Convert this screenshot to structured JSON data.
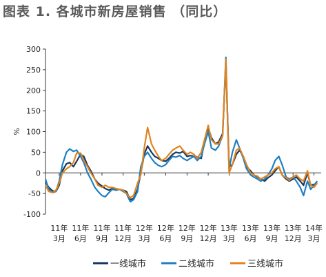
{
  "title": "图表 1. 各城市新房屋销售 （同比）",
  "chart_data": {
    "type": "line",
    "ylabel": "%",
    "ylim": [
      -100,
      300
    ],
    "yticks": [
      -100,
      -50,
      0,
      50,
      100,
      150,
      200,
      250,
      300
    ],
    "x_range": [
      "2011-01",
      "2014-04"
    ],
    "xticks": [
      {
        "date": "2011-03",
        "line1": "11年",
        "line2": "3月"
      },
      {
        "date": "2011-06",
        "line1": "11年",
        "line2": "6月"
      },
      {
        "date": "2011-09",
        "line1": "11年",
        "line2": "9月"
      },
      {
        "date": "2011-12",
        "line1": "11年",
        "line2": "12月"
      },
      {
        "date": "2012-03",
        "line1": "12年",
        "line2": "3月"
      },
      {
        "date": "2012-06",
        "line1": "12年",
        "line2": "6月"
      },
      {
        "date": "2012-09",
        "line1": "12年",
        "line2": "9月"
      },
      {
        "date": "2012-12",
        "line1": "12年",
        "line2": "12月"
      },
      {
        "date": "2013-03",
        "line1": "13年",
        "line2": "3月"
      },
      {
        "date": "2013-06",
        "line1": "13年",
        "line2": "6月"
      },
      {
        "date": "2013-09",
        "line1": "13年",
        "line2": "9月"
      },
      {
        "date": "2013-12",
        "line1": "13年",
        "line2": "12月"
      },
      {
        "date": "2014-03",
        "line1": "14年",
        "line2": "3月"
      }
    ],
    "grid": false,
    "legend_position": "bottom",
    "series": [
      {
        "name": "一线城市",
        "color": "#17375e",
        "points": [
          [
            "2011-01-01",
            -22
          ],
          [
            "2011-01-15",
            -35
          ],
          [
            "2011-02-01",
            -44
          ],
          [
            "2011-02-15",
            -45
          ],
          [
            "2011-03-01",
            -30
          ],
          [
            "2011-03-15",
            5
          ],
          [
            "2011-04-01",
            22
          ],
          [
            "2011-04-15",
            25
          ],
          [
            "2011-05-01",
            15
          ],
          [
            "2011-05-15",
            28
          ],
          [
            "2011-06-01",
            45
          ],
          [
            "2011-06-15",
            40
          ],
          [
            "2011-07-01",
            18
          ],
          [
            "2011-07-15",
            5
          ],
          [
            "2011-08-01",
            -15
          ],
          [
            "2011-08-15",
            -25
          ],
          [
            "2011-09-01",
            -32
          ],
          [
            "2011-09-15",
            -38
          ],
          [
            "2011-10-01",
            -42
          ],
          [
            "2011-10-15",
            -38
          ],
          [
            "2011-11-01",
            -40
          ],
          [
            "2011-11-15",
            -40
          ],
          [
            "2011-12-01",
            -42
          ],
          [
            "2011-12-15",
            -45
          ],
          [
            "2012-01-01",
            -65
          ],
          [
            "2012-01-15",
            -62
          ],
          [
            "2012-02-01",
            -40
          ],
          [
            "2012-02-15",
            0
          ],
          [
            "2012-03-01",
            45
          ],
          [
            "2012-03-15",
            65
          ],
          [
            "2012-04-01",
            50
          ],
          [
            "2012-04-15",
            40
          ],
          [
            "2012-05-01",
            35
          ],
          [
            "2012-05-15",
            30
          ],
          [
            "2012-06-01",
            28
          ],
          [
            "2012-06-15",
            35
          ],
          [
            "2012-07-01",
            45
          ],
          [
            "2012-07-15",
            50
          ],
          [
            "2012-08-01",
            48
          ],
          [
            "2012-08-15",
            52
          ],
          [
            "2012-09-01",
            40
          ],
          [
            "2012-09-15",
            42
          ],
          [
            "2012-10-01",
            40
          ],
          [
            "2012-10-15",
            38
          ],
          [
            "2012-11-01",
            35
          ],
          [
            "2012-11-15",
            75
          ],
          [
            "2012-12-01",
            110
          ],
          [
            "2012-12-15",
            85
          ],
          [
            "2013-01-01",
            70
          ],
          [
            "2013-01-15",
            75
          ],
          [
            "2013-02-01",
            95
          ],
          [
            "2013-02-15",
            265
          ],
          [
            "2013-03-01",
            15
          ],
          [
            "2013-03-15",
            20
          ],
          [
            "2013-04-01",
            45
          ],
          [
            "2013-04-15",
            55
          ],
          [
            "2013-05-01",
            40
          ],
          [
            "2013-05-15",
            15
          ],
          [
            "2013-06-01",
            5
          ],
          [
            "2013-06-15",
            -5
          ],
          [
            "2013-07-01",
            -10
          ],
          [
            "2013-07-15",
            -15
          ],
          [
            "2013-08-01",
            -20
          ],
          [
            "2013-08-15",
            -12
          ],
          [
            "2013-09-01",
            -5
          ],
          [
            "2013-09-15",
            5
          ],
          [
            "2013-10-01",
            15
          ],
          [
            "2013-10-15",
            -5
          ],
          [
            "2013-11-01",
            -15
          ],
          [
            "2013-11-15",
            -20
          ],
          [
            "2013-12-01",
            -15
          ],
          [
            "2013-12-15",
            -10
          ],
          [
            "2014-01-01",
            -20
          ],
          [
            "2014-01-15",
            -30
          ],
          [
            "2014-02-01",
            0
          ],
          [
            "2014-02-15",
            -30
          ],
          [
            "2014-03-01",
            -28
          ],
          [
            "2014-03-15",
            -25
          ]
        ]
      },
      {
        "name": "二线城市",
        "color": "#1f7fc1",
        "points": [
          [
            "2011-01-01",
            -15
          ],
          [
            "2011-01-15",
            -40
          ],
          [
            "2011-02-01",
            -48
          ],
          [
            "2011-02-15",
            -45
          ],
          [
            "2011-03-01",
            -20
          ],
          [
            "2011-03-15",
            20
          ],
          [
            "2011-04-01",
            50
          ],
          [
            "2011-04-15",
            58
          ],
          [
            "2011-05-01",
            52
          ],
          [
            "2011-05-15",
            55
          ],
          [
            "2011-06-01",
            40
          ],
          [
            "2011-06-15",
            25
          ],
          [
            "2011-07-01",
            0
          ],
          [
            "2011-07-15",
            -15
          ],
          [
            "2011-08-01",
            -35
          ],
          [
            "2011-08-15",
            -45
          ],
          [
            "2011-09-01",
            -55
          ],
          [
            "2011-09-15",
            -58
          ],
          [
            "2011-10-01",
            -48
          ],
          [
            "2011-10-15",
            -40
          ],
          [
            "2011-11-01",
            -42
          ],
          [
            "2011-11-15",
            -40
          ],
          [
            "2011-12-01",
            -45
          ],
          [
            "2011-12-15",
            -50
          ],
          [
            "2012-01-01",
            -70
          ],
          [
            "2012-01-15",
            -65
          ],
          [
            "2012-02-01",
            -45
          ],
          [
            "2012-02-15",
            15
          ],
          [
            "2012-03-01",
            40
          ],
          [
            "2012-03-15",
            50
          ],
          [
            "2012-04-01",
            35
          ],
          [
            "2012-04-15",
            25
          ],
          [
            "2012-05-01",
            18
          ],
          [
            "2012-05-15",
            15
          ],
          [
            "2012-06-01",
            20
          ],
          [
            "2012-06-15",
            30
          ],
          [
            "2012-07-01",
            40
          ],
          [
            "2012-07-15",
            38
          ],
          [
            "2012-08-01",
            42
          ],
          [
            "2012-08-15",
            35
          ],
          [
            "2012-09-01",
            30
          ],
          [
            "2012-09-15",
            35
          ],
          [
            "2012-10-01",
            40
          ],
          [
            "2012-10-15",
            30
          ],
          [
            "2012-11-01",
            40
          ],
          [
            "2012-11-15",
            70
          ],
          [
            "2012-12-01",
            100
          ],
          [
            "2012-12-15",
            60
          ],
          [
            "2013-01-01",
            55
          ],
          [
            "2013-01-15",
            65
          ],
          [
            "2013-02-01",
            90
          ],
          [
            "2013-02-15",
            280
          ],
          [
            "2013-03-01",
            10
          ],
          [
            "2013-03-15",
            50
          ],
          [
            "2013-04-01",
            80
          ],
          [
            "2013-04-15",
            60
          ],
          [
            "2013-05-01",
            35
          ],
          [
            "2013-05-15",
            10
          ],
          [
            "2013-06-01",
            -5
          ],
          [
            "2013-06-15",
            -10
          ],
          [
            "2013-07-01",
            -15
          ],
          [
            "2013-07-15",
            -20
          ],
          [
            "2013-08-01",
            -15
          ],
          [
            "2013-08-15",
            -5
          ],
          [
            "2013-09-01",
            10
          ],
          [
            "2013-09-15",
            30
          ],
          [
            "2013-10-01",
            40
          ],
          [
            "2013-10-15",
            20
          ],
          [
            "2013-11-01",
            -10
          ],
          [
            "2013-11-15",
            -15
          ],
          [
            "2013-12-01",
            -10
          ],
          [
            "2013-12-15",
            -20
          ],
          [
            "2014-01-01",
            -35
          ],
          [
            "2014-01-15",
            -55
          ],
          [
            "2014-02-01",
            -20
          ],
          [
            "2014-02-15",
            -40
          ],
          [
            "2014-03-01",
            -30
          ],
          [
            "2014-03-15",
            -20
          ]
        ]
      },
      {
        "name": "三线城市",
        "color": "#e0841f",
        "points": [
          [
            "2011-01-01",
            -30
          ],
          [
            "2011-01-15",
            -45
          ],
          [
            "2011-02-01",
            -48
          ],
          [
            "2011-02-15",
            -42
          ],
          [
            "2011-03-01",
            -25
          ],
          [
            "2011-03-15",
            0
          ],
          [
            "2011-04-01",
            10
          ],
          [
            "2011-04-15",
            15
          ],
          [
            "2011-05-01",
            25
          ],
          [
            "2011-05-15",
            48
          ],
          [
            "2011-06-01",
            48
          ],
          [
            "2011-06-15",
            30
          ],
          [
            "2011-07-01",
            15
          ],
          [
            "2011-07-15",
            0
          ],
          [
            "2011-08-01",
            -15
          ],
          [
            "2011-08-15",
            -30
          ],
          [
            "2011-09-01",
            -35
          ],
          [
            "2011-09-15",
            -30
          ],
          [
            "2011-10-01",
            -35
          ],
          [
            "2011-10-15",
            -35
          ],
          [
            "2011-11-01",
            -38
          ],
          [
            "2011-11-15",
            -40
          ],
          [
            "2011-12-01",
            -42
          ],
          [
            "2011-12-15",
            -50
          ],
          [
            "2012-01-01",
            -60
          ],
          [
            "2012-01-15",
            -55
          ],
          [
            "2012-02-01",
            -25
          ],
          [
            "2012-02-15",
            -5
          ],
          [
            "2012-03-01",
            60
          ],
          [
            "2012-03-15",
            110
          ],
          [
            "2012-04-01",
            70
          ],
          [
            "2012-04-15",
            55
          ],
          [
            "2012-05-01",
            40
          ],
          [
            "2012-05-15",
            30
          ],
          [
            "2012-06-01",
            35
          ],
          [
            "2012-06-15",
            45
          ],
          [
            "2012-07-01",
            55
          ],
          [
            "2012-07-15",
            60
          ],
          [
            "2012-08-01",
            65
          ],
          [
            "2012-08-15",
            55
          ],
          [
            "2012-09-01",
            45
          ],
          [
            "2012-09-15",
            50
          ],
          [
            "2012-10-01",
            45
          ],
          [
            "2012-10-15",
            35
          ],
          [
            "2012-11-01",
            50
          ],
          [
            "2012-11-15",
            80
          ],
          [
            "2012-12-01",
            115
          ],
          [
            "2012-12-15",
            80
          ],
          [
            "2013-01-01",
            70
          ],
          [
            "2013-01-15",
            70
          ],
          [
            "2013-02-01",
            90
          ],
          [
            "2013-02-15",
            275
          ],
          [
            "2013-03-01",
            0
          ],
          [
            "2013-03-15",
            20
          ],
          [
            "2013-04-01",
            55
          ],
          [
            "2013-04-15",
            60
          ],
          [
            "2013-05-01",
            40
          ],
          [
            "2013-05-15",
            20
          ],
          [
            "2013-06-01",
            0
          ],
          [
            "2013-06-15",
            -5
          ],
          [
            "2013-07-01",
            -8
          ],
          [
            "2013-07-15",
            -15
          ],
          [
            "2013-08-01",
            -10
          ],
          [
            "2013-08-15",
            -5
          ],
          [
            "2013-09-01",
            0
          ],
          [
            "2013-09-15",
            10
          ],
          [
            "2013-10-01",
            15
          ],
          [
            "2013-10-15",
            -5
          ],
          [
            "2013-11-01",
            -12
          ],
          [
            "2013-11-15",
            -18
          ],
          [
            "2013-12-01",
            -10
          ],
          [
            "2013-12-15",
            -5
          ],
          [
            "2014-01-01",
            -15
          ],
          [
            "2014-01-15",
            -20
          ],
          [
            "2014-02-01",
            5
          ],
          [
            "2014-02-15",
            -30
          ],
          [
            "2014-03-01",
            -35
          ],
          [
            "2014-03-15",
            -25
          ]
        ]
      }
    ]
  }
}
